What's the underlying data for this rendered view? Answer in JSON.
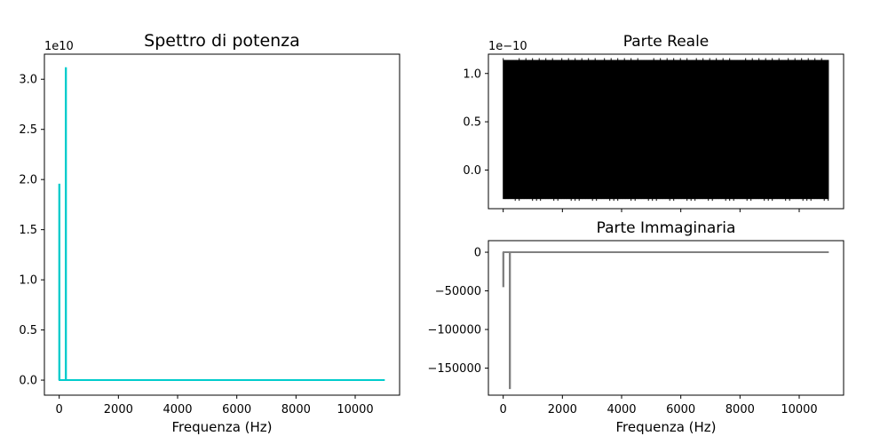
{
  "chart_data": [
    {
      "type": "line",
      "title": "Spettro di potenza",
      "xlabel": "Frequenza (Hz)",
      "ylabel": "",
      "y_offset_label": "1e10",
      "color": "#00cccc",
      "xlim": [
        -500,
        11500
      ],
      "ylim": [
        -0.15,
        3.25
      ],
      "x_ticks": [
        0,
        2000,
        4000,
        6000,
        8000,
        10000
      ],
      "x_tick_labels": [
        "0",
        "2000",
        "4000",
        "6000",
        "8000",
        "10000"
      ],
      "y_ticks": [
        0.0,
        0.5,
        1.0,
        1.5,
        2.0,
        2.5,
        3.0
      ],
      "y_tick_labels": [
        "0.0",
        "0.5",
        "1.0",
        "1.5",
        "2.0",
        "2.5",
        "3.0"
      ],
      "grid": false,
      "series": [
        {
          "x": [
            0,
            0,
            10,
            10,
            220,
            220,
            230,
            230,
            11000
          ],
          "y": [
            0,
            1.95,
            1.95,
            0,
            0,
            3.11,
            3.11,
            0,
            0
          ]
        }
      ]
    },
    {
      "type": "line",
      "title": "Parte Reale",
      "xlabel": "",
      "ylabel": "",
      "y_offset_label": "1e−10",
      "color": "#000000",
      "xlim": [
        -500,
        11500
      ],
      "ylim": [
        -0.4,
        1.2
      ],
      "x_ticks": [
        0,
        2000,
        4000,
        6000,
        8000,
        10000
      ],
      "x_tick_labels": [],
      "y_ticks": [
        0.0,
        0.5,
        1.0
      ],
      "y_tick_labels": [
        "0.0",
        "0.5",
        "1.0"
      ],
      "grid": false,
      "series": [
        {
          "x_range": [
            0,
            11000
          ],
          "y_range": [
            -0.3,
            1.14
          ],
          "render": "dense oscillation filling band"
        }
      ]
    },
    {
      "type": "line",
      "title": "Parte Immaginaria",
      "xlabel": "Frequenza (Hz)",
      "ylabel": "",
      "color": "#808080",
      "xlim": [
        -500,
        11500
      ],
      "ylim": [
        -185000,
        15000
      ],
      "x_ticks": [
        0,
        2000,
        4000,
        6000,
        8000,
        10000
      ],
      "x_tick_labels": [
        "0",
        "2000",
        "4000",
        "6000",
        "8000",
        "10000"
      ],
      "y_ticks": [
        0,
        -50000,
        -100000,
        -150000
      ],
      "y_tick_labels": [
        "0",
        "−50000",
        "−100000",
        "−150000"
      ],
      "grid": false,
      "series": [
        {
          "x": [
            0,
            0,
            10,
            10,
            220,
            220,
            230,
            230,
            11000
          ],
          "y": [
            0,
            -44000,
            -44000,
            0,
            0,
            -176000,
            -176000,
            0,
            0
          ]
        }
      ]
    }
  ]
}
